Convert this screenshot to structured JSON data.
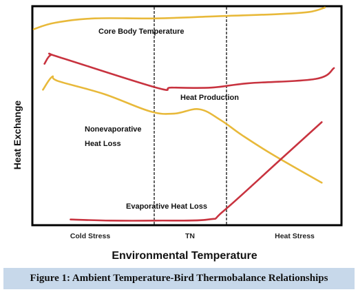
{
  "caption": "Figure 1: Ambient Temperature-Bird Thermobalance Relationships",
  "colors": {
    "yellow_curve": "#e8b93a",
    "red_curve": "#c8333f",
    "frame": "#000000",
    "caption_bg": "#c7d8ea"
  },
  "chart_data": {
    "type": "line",
    "xlabel": "Environmental Temperature",
    "ylabel": "Heat Exchange",
    "x_categories": [
      "Cold Stress",
      "TN",
      "Heat Stress"
    ],
    "zone_boundaries": [
      "TN lower limit",
      "TN upper limit"
    ],
    "grid": false,
    "legend": "none",
    "series": [
      {
        "name": "Core Body Temperature",
        "color": "#e8b93a",
        "points": [
          [
            0.0,
            0.1
          ],
          [
            0.07,
            0.07
          ],
          [
            0.2,
            0.05
          ],
          [
            0.4,
            0.05
          ],
          [
            0.6,
            0.04
          ],
          [
            0.8,
            0.03
          ],
          [
            0.9,
            0.02
          ],
          [
            0.95,
            0.0
          ]
        ]
      },
      {
        "name": "Heat Production",
        "color": "#c8333f",
        "points": [
          [
            0.035,
            0.26
          ],
          [
            0.055,
            0.22
          ],
          [
            0.085,
            0.23
          ],
          [
            0.4,
            0.37
          ],
          [
            0.45,
            0.37
          ],
          [
            0.58,
            0.37
          ],
          [
            0.7,
            0.35
          ],
          [
            0.92,
            0.33
          ],
          [
            0.98,
            0.28
          ]
        ]
      },
      {
        "name": "Nonevaporative Heat Loss",
        "color": "#e8b93a",
        "points": [
          [
            0.03,
            0.38
          ],
          [
            0.06,
            0.32
          ],
          [
            0.08,
            0.34
          ],
          [
            0.23,
            0.4
          ],
          [
            0.38,
            0.48
          ],
          [
            0.46,
            0.49
          ],
          [
            0.54,
            0.47
          ],
          [
            0.61,
            0.52
          ],
          [
            0.68,
            0.59
          ],
          [
            0.78,
            0.68
          ],
          [
            0.94,
            0.81
          ]
        ]
      },
      {
        "name": "Evaporative Heat Loss",
        "color": "#c8333f",
        "points": [
          [
            0.12,
            0.98
          ],
          [
            0.25,
            0.985
          ],
          [
            0.4,
            0.985
          ],
          [
            0.57,
            0.98
          ],
          [
            0.62,
            0.94
          ],
          [
            0.8,
            0.71
          ],
          [
            0.94,
            0.53
          ]
        ]
      }
    ],
    "annotations": [
      {
        "series": "Core Body Temperature",
        "text": "Core Body Temperature"
      },
      {
        "series": "Heat Production",
        "text": "Heat Production"
      },
      {
        "series": "Nonevaporative Heat Loss",
        "text": [
          "Nonevaporative",
          "Heat Loss"
        ]
      },
      {
        "series": "Evaporative Heat Loss",
        "text": "Evaporative Heat Loss"
      }
    ]
  }
}
